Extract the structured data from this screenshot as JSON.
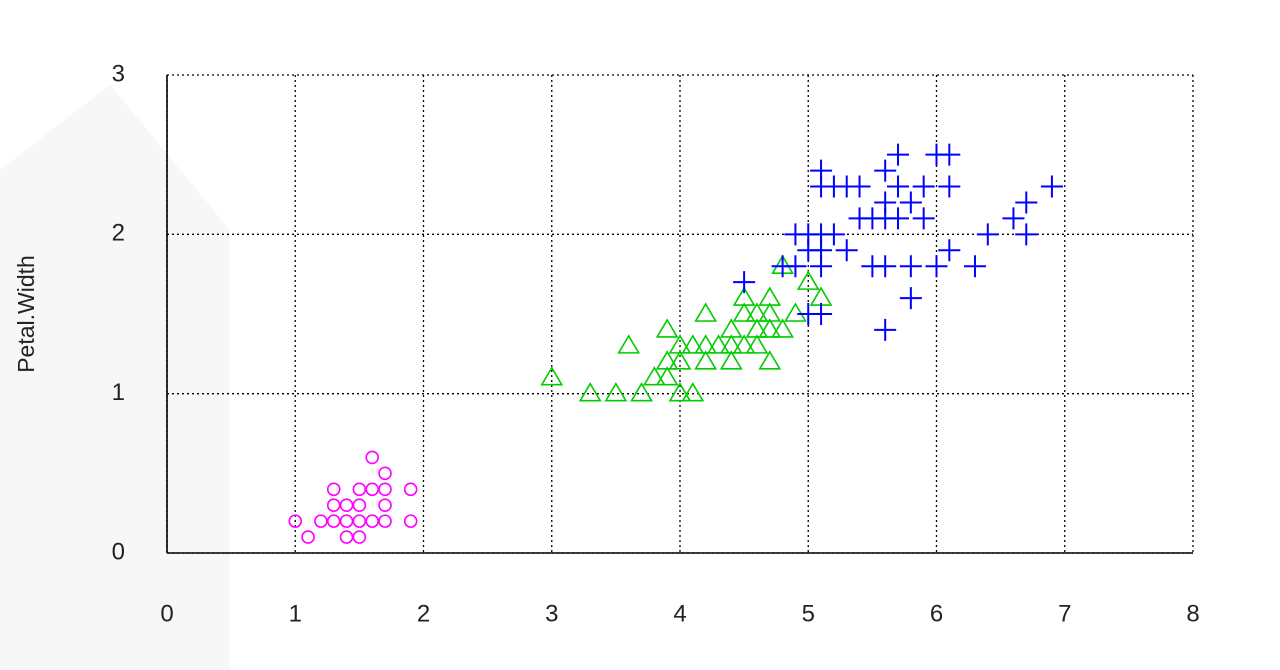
{
  "chart_data": {
    "type": "scatter",
    "y_label": "Petal.Width",
    "xlim": [
      0,
      8
    ],
    "ylim": [
      0,
      3
    ],
    "xticks": [
      0,
      1,
      2,
      3,
      4,
      5,
      6,
      7,
      8
    ],
    "yticks": [
      0,
      1,
      2,
      3
    ],
    "grid": true,
    "series": [
      {
        "color": "#ff00ff",
        "marker": "circle",
        "x": [
          1.0,
          1.1,
          1.2,
          1.3,
          1.3,
          1.3,
          1.4,
          1.4,
          1.4,
          1.5,
          1.5,
          1.5,
          1.5,
          1.6,
          1.6,
          1.6,
          1.7,
          1.7,
          1.7,
          1.7,
          1.9,
          1.9
        ],
        "values": [
          0.2,
          0.1,
          0.2,
          0.2,
          0.3,
          0.4,
          0.1,
          0.2,
          0.3,
          0.1,
          0.2,
          0.3,
          0.4,
          0.2,
          0.4,
          0.6,
          0.2,
          0.3,
          0.4,
          0.5,
          0.2,
          0.4
        ]
      },
      {
        "color": "#00cc00",
        "marker": "triangle",
        "x": [
          3.0,
          3.3,
          3.5,
          3.6,
          3.7,
          3.8,
          3.9,
          3.9,
          3.9,
          4.0,
          4.0,
          4.0,
          4.1,
          4.1,
          4.2,
          4.2,
          4.2,
          4.3,
          4.4,
          4.4,
          4.4,
          4.5,
          4.5,
          4.5,
          4.6,
          4.6,
          4.6,
          4.7,
          4.7,
          4.7,
          4.7,
          4.8,
          4.8,
          4.9,
          5.0,
          5.1
        ],
        "values": [
          1.1,
          1.0,
          1.0,
          1.3,
          1.0,
          1.1,
          1.1,
          1.2,
          1.4,
          1.0,
          1.2,
          1.3,
          1.0,
          1.3,
          1.2,
          1.3,
          1.5,
          1.3,
          1.2,
          1.3,
          1.4,
          1.3,
          1.5,
          1.6,
          1.3,
          1.4,
          1.5,
          1.2,
          1.4,
          1.5,
          1.6,
          1.4,
          1.8,
          1.5,
          1.7,
          1.6
        ]
      },
      {
        "color": "#0000ff",
        "marker": "plus",
        "x": [
          4.5,
          4.8,
          4.9,
          4.9,
          5.0,
          5.0,
          5.0,
          5.1,
          5.1,
          5.1,
          5.1,
          5.1,
          5.1,
          5.2,
          5.2,
          5.3,
          5.3,
          5.4,
          5.4,
          5.5,
          5.5,
          5.6,
          5.6,
          5.6,
          5.6,
          5.6,
          5.7,
          5.7,
          5.7,
          5.8,
          5.8,
          5.8,
          5.9,
          5.9,
          6.0,
          6.0,
          6.1,
          6.1,
          6.1,
          6.3,
          6.4,
          6.6,
          6.7,
          6.7,
          6.9
        ],
        "values": [
          1.7,
          1.8,
          1.8,
          2.0,
          1.5,
          1.9,
          2.0,
          1.5,
          1.8,
          1.9,
          2.0,
          2.3,
          2.4,
          2.0,
          2.3,
          1.9,
          2.3,
          2.1,
          2.3,
          1.8,
          2.1,
          1.4,
          1.8,
          2.1,
          2.2,
          2.4,
          2.1,
          2.3,
          2.5,
          1.6,
          1.8,
          2.2,
          2.1,
          2.3,
          1.8,
          2.5,
          1.9,
          2.3,
          2.5,
          1.8,
          2.0,
          2.1,
          2.0,
          2.2,
          2.3
        ]
      }
    ]
  }
}
